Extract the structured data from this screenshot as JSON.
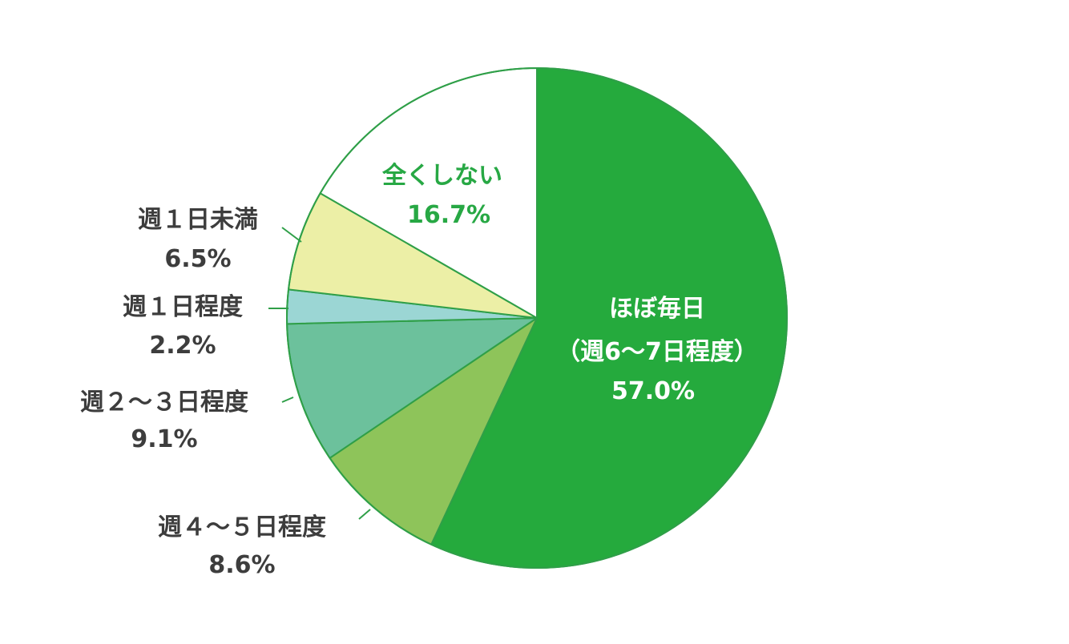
{
  "chart_data": {
    "type": "pie",
    "start_angle_deg": 0,
    "direction": "clockwise",
    "slices": [
      {
        "label": "ほぼ毎日",
        "sublabel": "（週6〜7日程度）",
        "value_text": "57.0%",
        "value": 57.0,
        "color": "#25aa3d"
      },
      {
        "label": "週４〜５日程度",
        "value_text": "8.6%",
        "value": 8.6,
        "color": "#8ec45a"
      },
      {
        "label": "週２〜３日程度",
        "value_text": "9.1%",
        "value": 9.1,
        "color": "#6cc19c"
      },
      {
        "label": "週１日程度",
        "value_text": "2.2%",
        "value": 2.2,
        "color": "#9bd6d4"
      },
      {
        "label": "週１日未満",
        "value_text": "6.5%",
        "value": 6.5,
        "color": "#ecefa6"
      },
      {
        "label": "全くしない",
        "value_text": "16.7%",
        "value": 16.7,
        "color": "#ffffff"
      }
    ],
    "border_color": "#2f9f48",
    "legend": "none"
  }
}
